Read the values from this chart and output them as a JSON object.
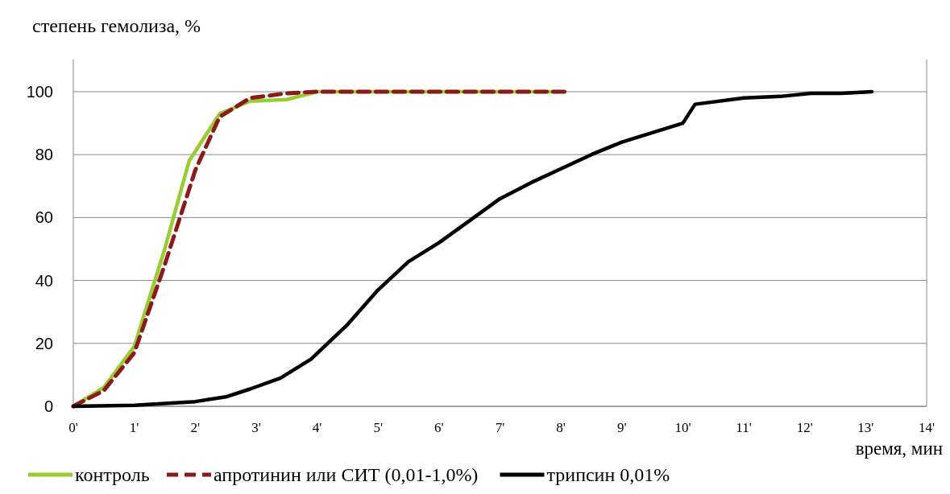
{
  "chart_data": {
    "type": "line",
    "ylabel": "степень гемолиза, %",
    "xlabel": "время, мин",
    "xlim": [
      0,
      14
    ],
    "ylim": [
      0,
      100
    ],
    "yticks": [
      0,
      20,
      40,
      60,
      80,
      100
    ],
    "xticks": [
      {
        "value": 0,
        "label": "0'"
      },
      {
        "value": 1,
        "label": "1'"
      },
      {
        "value": 2,
        "label": "2'"
      },
      {
        "value": 3,
        "label": "3'"
      },
      {
        "value": 4,
        "label": "4'"
      },
      {
        "value": 5,
        "label": "5'"
      },
      {
        "value": 6,
        "label": "6'"
      },
      {
        "value": 7,
        "label": "7'"
      },
      {
        "value": 8,
        "label": "8'"
      },
      {
        "value": 9,
        "label": "9'"
      },
      {
        "value": 10,
        "label": "10'"
      },
      {
        "value": 11,
        "label": "11'"
      },
      {
        "value": 12,
        "label": "12'"
      },
      {
        "value": 13,
        "label": "13'"
      },
      {
        "value": 14,
        "label": "14'"
      }
    ],
    "grid": "y",
    "legend": "bottom",
    "marker": "none",
    "series": [
      {
        "name": "контроль",
        "color": "#99cc33",
        "line_style": "solid",
        "x": [
          0,
          0.5,
          1,
          1.5,
          1.9,
          2.4,
          2.9,
          3.5,
          4,
          5,
          6,
          7,
          8
        ],
        "values": [
          0,
          6,
          19,
          50,
          78,
          93,
          97,
          97.5,
          100,
          100,
          100,
          100,
          100
        ]
      },
      {
        "name": "апротинин или СИТ (0,01-1,0%)",
        "color": "#8b1a1a",
        "line_style": "dashed",
        "x": [
          0,
          0.5,
          1,
          1.5,
          2,
          2.4,
          2.9,
          3.5,
          4,
          5,
          6,
          7,
          8.1
        ],
        "values": [
          0,
          5,
          17,
          45,
          75,
          92,
          98,
          99.5,
          100,
          100,
          100,
          100,
          100
        ]
      },
      {
        "name": "трипсин 0,01%",
        "color": "#000000",
        "line_style": "solid",
        "x": [
          0,
          1,
          2,
          2.5,
          2.9,
          3.4,
          3.9,
          4.5,
          5,
          5.5,
          6,
          6.5,
          7,
          7.5,
          8,
          8.5,
          9,
          9.5,
          10,
          10.2,
          11,
          11.6,
          12.1,
          12.6,
          13.1
        ],
        "values": [
          0,
          0.3,
          1.5,
          3,
          5.5,
          9,
          15,
          26,
          37,
          46,
          52,
          59,
          66,
          71,
          75.5,
          80,
          84,
          87,
          90,
          96,
          98,
          98.5,
          99.5,
          99.5,
          100
        ]
      }
    ]
  }
}
